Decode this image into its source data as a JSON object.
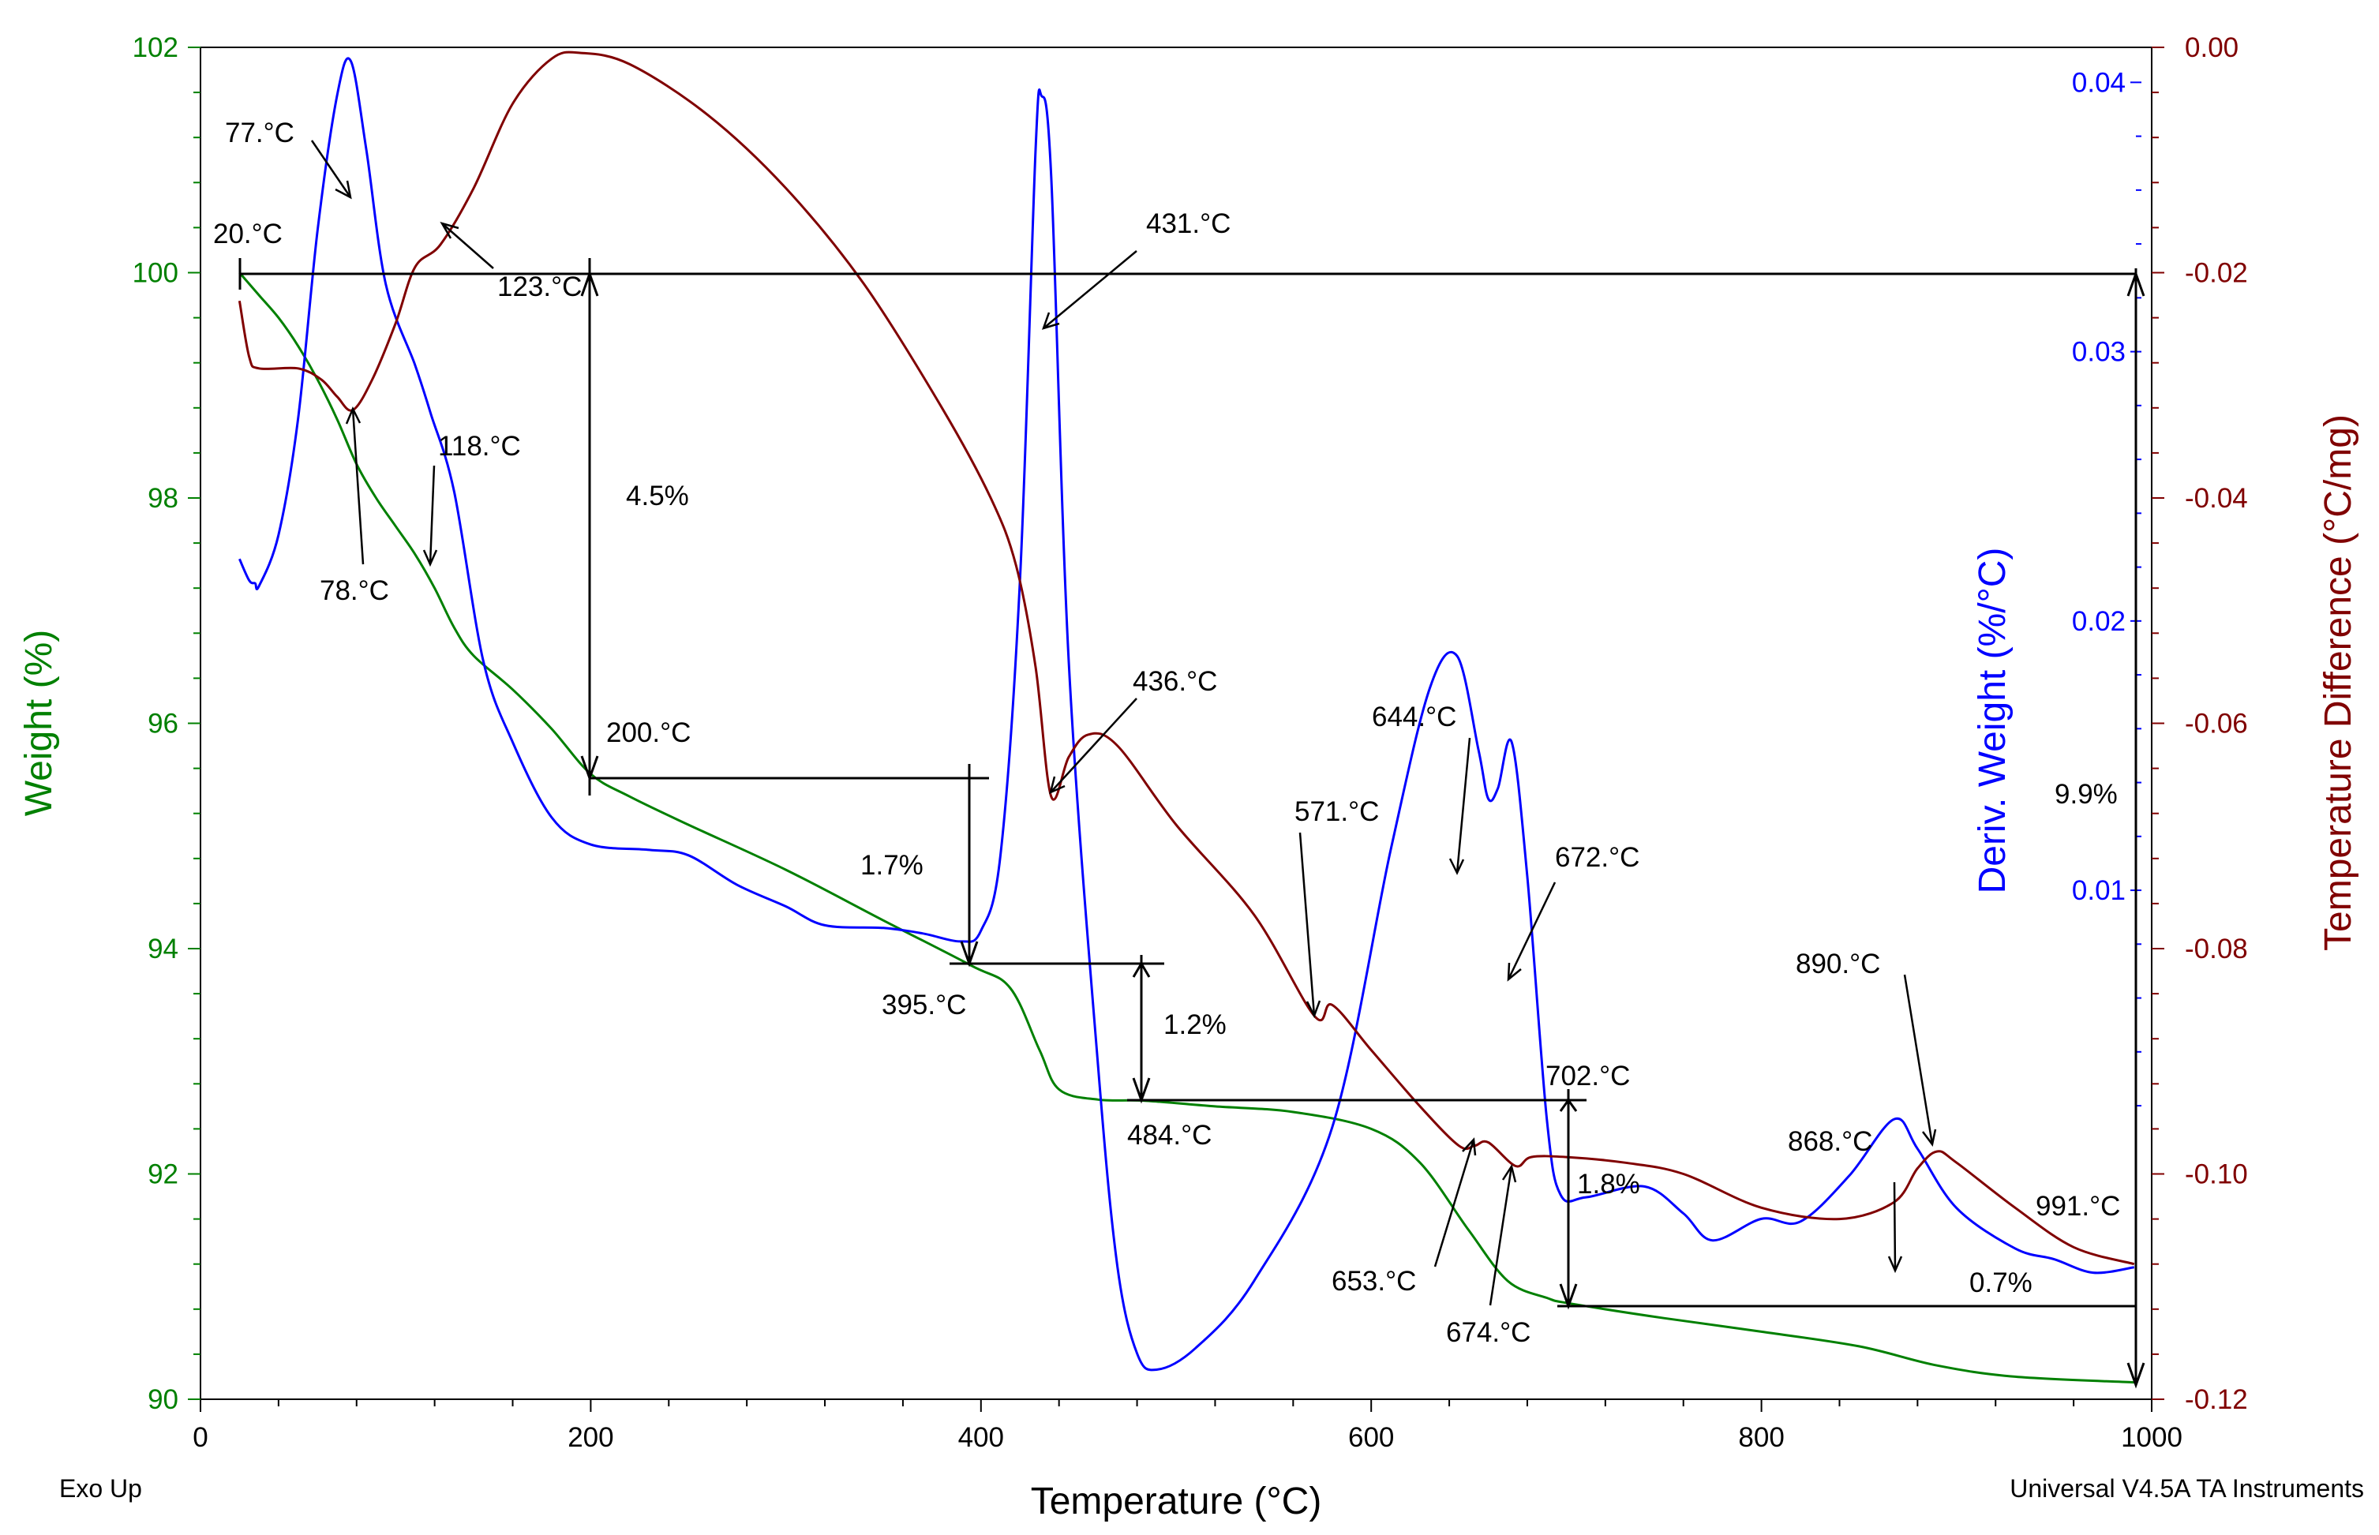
{
  "chart_data": {
    "type": "line",
    "footer_left": "Exo Up",
    "footer_right": "Universal V4.5A TA Instruments",
    "x_axis": {
      "label": "Temperature (°C)",
      "range": [
        0,
        1000
      ],
      "ticks": [
        "0",
        "200",
        "400",
        "600",
        "800",
        "1000"
      ],
      "tick_values": [
        0,
        200,
        400,
        600,
        800,
        1000
      ]
    },
    "y_left": {
      "label": "Weight (%)",
      "color": "#008000",
      "range": [
        90,
        102
      ],
      "ticks": [
        "90",
        "92",
        "94",
        "96",
        "98",
        "100",
        "102"
      ],
      "tick_values": [
        90,
        92,
        94,
        96,
        98,
        100,
        102
      ]
    },
    "y_deriv": {
      "label": "Deriv. Weight (%/°C)",
      "color": "#0000FF",
      "range": [
        -0.0089,
        0.0413
      ],
      "ticks": [
        "0.01",
        "0.02",
        "0.03",
        "0.04"
      ],
      "tick_values": [
        0.01,
        0.02,
        0.03,
        0.04
      ]
    },
    "y_right": {
      "label": "Temperature Difference (°C/mg)",
      "color": "#800000",
      "range": [
        -0.12,
        0.0
      ],
      "ticks": [
        "0.00",
        "-0.02",
        "-0.04",
        "-0.06",
        "-0.08",
        "-0.10",
        "-0.12"
      ],
      "tick_values": [
        0.0,
        -0.02,
        -0.04,
        -0.06,
        -0.08,
        -0.1,
        -0.12
      ]
    },
    "series": [
      {
        "name": "Weight",
        "axis": "left",
        "color": "#008000",
        "points": [
          [
            20,
            100.0
          ],
          [
            30,
            99.8
          ],
          [
            40,
            99.6
          ],
          [
            50,
            99.35
          ],
          [
            60,
            99.05
          ],
          [
            70,
            98.7
          ],
          [
            80,
            98.3
          ],
          [
            90,
            98.0
          ],
          [
            100,
            97.75
          ],
          [
            110,
            97.5
          ],
          [
            120,
            97.2
          ],
          [
            130,
            96.85
          ],
          [
            140,
            96.6
          ],
          [
            160,
            96.3
          ],
          [
            180,
            95.95
          ],
          [
            200,
            95.55
          ],
          [
            220,
            95.35
          ],
          [
            250,
            95.1
          ],
          [
            300,
            94.7
          ],
          [
            350,
            94.25
          ],
          [
            395,
            93.85
          ],
          [
            415,
            93.65
          ],
          [
            430,
            93.1
          ],
          [
            440,
            92.75
          ],
          [
            460,
            92.66
          ],
          [
            484,
            92.65
          ],
          [
            520,
            92.6
          ],
          [
            560,
            92.55
          ],
          [
            600,
            92.4
          ],
          [
            625,
            92.1
          ],
          [
            650,
            91.5
          ],
          [
            670,
            91.05
          ],
          [
            690,
            90.9
          ],
          [
            702,
            90.85
          ],
          [
            750,
            90.72
          ],
          [
            800,
            90.6
          ],
          [
            850,
            90.47
          ],
          [
            890,
            90.3
          ],
          [
            930,
            90.2
          ],
          [
            991,
            90.15
          ]
        ]
      },
      {
        "name": "Deriv. Weight",
        "axis": "deriv",
        "color": "#0000FF",
        "points": [
          [
            20,
            0.0223
          ],
          [
            25,
            0.0215
          ],
          [
            28,
            0.0214
          ],
          [
            30,
            0.0213
          ],
          [
            40,
            0.0232
          ],
          [
            50,
            0.0275
          ],
          [
            60,
            0.0345
          ],
          [
            70,
            0.0395
          ],
          [
            77,
            0.0408
          ],
          [
            85,
            0.0375
          ],
          [
            95,
            0.0325
          ],
          [
            110,
            0.0295
          ],
          [
            118,
            0.0277
          ],
          [
            130,
            0.0248
          ],
          [
            145,
            0.0185
          ],
          [
            160,
            0.0155
          ],
          [
            180,
            0.0127
          ],
          [
            200,
            0.0117
          ],
          [
            230,
            0.0115
          ],
          [
            250,
            0.0113
          ],
          [
            275,
            0.0102
          ],
          [
            300,
            0.0094
          ],
          [
            320,
            0.0087
          ],
          [
            350,
            0.0086
          ],
          [
            370,
            0.0084
          ],
          [
            390,
            0.0081
          ],
          [
            400,
            0.0085
          ],
          [
            410,
            0.0113
          ],
          [
            420,
            0.0215
          ],
          [
            428,
            0.0375
          ],
          [
            431,
            0.0395
          ],
          [
            436,
            0.0365
          ],
          [
            445,
            0.0185
          ],
          [
            460,
            0.0035
          ],
          [
            470,
            -0.004
          ],
          [
            480,
            -0.0072
          ],
          [
            490,
            -0.0078
          ],
          [
            510,
            -0.007
          ],
          [
            540,
            -0.0045
          ],
          [
            580,
            0.0012
          ],
          [
            610,
            0.0115
          ],
          [
            630,
            0.0175
          ],
          [
            644,
            0.0187
          ],
          [
            655,
            0.0152
          ],
          [
            660,
            0.0134
          ],
          [
            665,
            0.0138
          ],
          [
            672,
            0.0155
          ],
          [
            680,
            0.0105
          ],
          [
            690,
            0.0015
          ],
          [
            697,
            -0.0013
          ],
          [
            710,
            -0.0014
          ],
          [
            740,
            -0.001
          ],
          [
            760,
            -0.002
          ],
          [
            775,
            -0.003
          ],
          [
            800,
            -0.0022
          ],
          [
            820,
            -0.0023
          ],
          [
            845,
            -0.0006
          ],
          [
            868,
            0.0015
          ],
          [
            880,
            0.0004
          ],
          [
            900,
            -0.0018
          ],
          [
            930,
            -0.0033
          ],
          [
            950,
            -0.0037
          ],
          [
            970,
            -0.0042
          ],
          [
            991,
            -0.004
          ]
        ]
      },
      {
        "name": "Temperature Difference",
        "axis": "right",
        "color": "#800000",
        "points": [
          [
            20,
            -0.0225
          ],
          [
            25,
            -0.0275
          ],
          [
            30,
            -0.0285
          ],
          [
            50,
            -0.0285
          ],
          [
            62,
            -0.0295
          ],
          [
            70,
            -0.031
          ],
          [
            78,
            -0.0322
          ],
          [
            88,
            -0.0295
          ],
          [
            100,
            -0.0245
          ],
          [
            110,
            -0.0195
          ],
          [
            123,
            -0.0175
          ],
          [
            140,
            -0.0125
          ],
          [
            160,
            -0.005
          ],
          [
            180,
            -0.001
          ],
          [
            195,
            -0.0005
          ],
          [
            220,
            -0.0015
          ],
          [
            260,
            -0.006
          ],
          [
            300,
            -0.0125
          ],
          [
            340,
            -0.021
          ],
          [
            380,
            -0.032
          ],
          [
            405,
            -0.04
          ],
          [
            418,
            -0.046
          ],
          [
            428,
            -0.055
          ],
          [
            436,
            -0.0665
          ],
          [
            445,
            -0.063
          ],
          [
            455,
            -0.061
          ],
          [
            470,
            -0.062
          ],
          [
            500,
            -0.069
          ],
          [
            540,
            -0.077
          ],
          [
            571,
            -0.086
          ],
          [
            580,
            -0.085
          ],
          [
            600,
            -0.089
          ],
          [
            625,
            -0.094
          ],
          [
            645,
            -0.0975
          ],
          [
            653,
            -0.0975
          ],
          [
            660,
            -0.0972
          ],
          [
            674,
            -0.0993
          ],
          [
            682,
            -0.0985
          ],
          [
            700,
            -0.0985
          ],
          [
            730,
            -0.099
          ],
          [
            760,
            -0.1
          ],
          [
            800,
            -0.103
          ],
          [
            840,
            -0.104
          ],
          [
            868,
            -0.1025
          ],
          [
            880,
            -0.0995
          ],
          [
            890,
            -0.098
          ],
          [
            900,
            -0.099
          ],
          [
            930,
            -0.103
          ],
          [
            960,
            -0.1065
          ],
          [
            991,
            -0.108
          ]
        ]
      }
    ],
    "annotations": [
      {
        "text": "77.°C"
      },
      {
        "text": "20.°C"
      },
      {
        "text": "123.°C"
      },
      {
        "text": "118.°C"
      },
      {
        "text": "78.°C"
      },
      {
        "text": "4.5%"
      },
      {
        "text": "200.°C"
      },
      {
        "text": "431.°C"
      },
      {
        "text": "436.°C"
      },
      {
        "text": "1.7%"
      },
      {
        "text": "395.°C"
      },
      {
        "text": "1.2%"
      },
      {
        "text": "484.°C"
      },
      {
        "text": "571.°C"
      },
      {
        "text": "644.°C"
      },
      {
        "text": "672.°C"
      },
      {
        "text": "702.°C"
      },
      {
        "text": "1.8%"
      },
      {
        "text": "653.°C"
      },
      {
        "text": "674.°C"
      },
      {
        "text": "890.°C"
      },
      {
        "text": "868.°C"
      },
      {
        "text": "0.7%"
      },
      {
        "text": "991.°C"
      },
      {
        "text": "9.9%"
      }
    ]
  }
}
